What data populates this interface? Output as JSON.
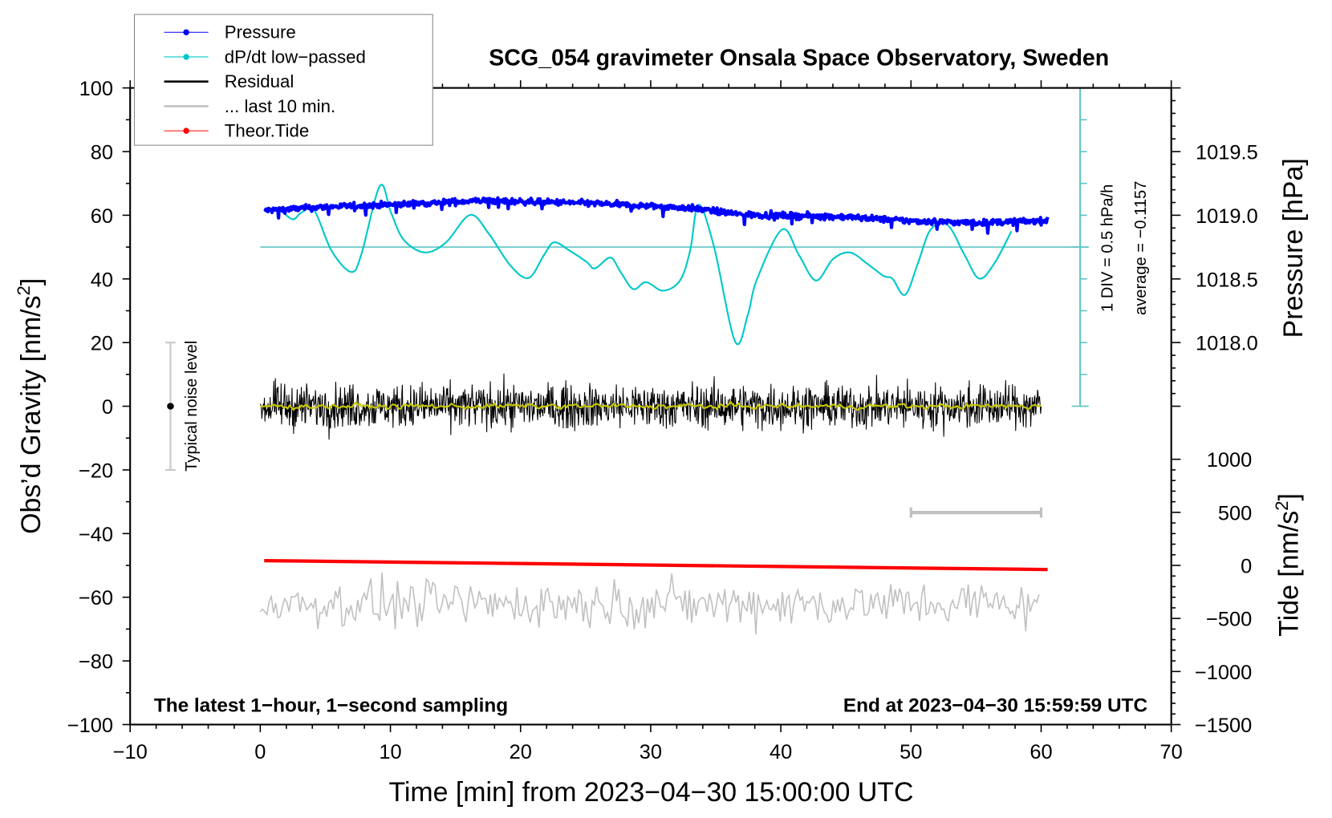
{
  "chart_data": {
    "type": "line",
    "title": "SCG_054 gravimeter Onsala Space Observatory, Sweden",
    "xlabel": "Time [min] from 2023−04−30 15:00:00 UTC",
    "ylabel": "Obs’d Gravity [nm/s²]",
    "ylabel_right_pressure": "Pressure [hPa]",
    "ylabel_right_tide_text": "Tide [nm/s",
    "ylabel_right_tide_sup": "2",
    "ylabel_right_tide_end": "]",
    "ylabel_text": "Obs’d Gravity [nm/s",
    "ylabel_sup": "2",
    "ylabel_end": "]",
    "xlim": [
      -10,
      70
    ],
    "ylim": [
      -100,
      100
    ],
    "x_ticks": [
      "−10",
      "0",
      "10",
      "20",
      "30",
      "40",
      "50",
      "60",
      "70"
    ],
    "x_tick_values": [
      -10,
      0,
      10,
      20,
      30,
      40,
      50,
      60,
      70
    ],
    "y_ticks": [
      "−100",
      "−80",
      "−60",
      "−40",
      "−20",
      "0",
      "20",
      "40",
      "60",
      "80",
      "100"
    ],
    "y_tick_values": [
      -100,
      -80,
      -60,
      -40,
      -20,
      0,
      20,
      40,
      60,
      80,
      100
    ],
    "pressure_ticks": [
      "1018.0",
      "1018.5",
      "1019.0",
      "1019.5"
    ],
    "pressure_tick_values": [
      1018.0,
      1018.5,
      1019.0,
      1019.5
    ],
    "pressure_axis": {
      "ref_hpa": 1019.0,
      "ref_gravity": 60,
      "hpa_per_gravity_unit": 0.025
    },
    "tide_ticks": [
      "−1500",
      "−1000",
      "−500",
      "0",
      "500",
      "1000"
    ],
    "tide_tick_values": [
      -1500,
      -1000,
      -500,
      0,
      500,
      1000
    ],
    "tide_axis": {
      "zero_gravity": -50,
      "tide_per_gravity_unit": 30
    },
    "dpdt_scale": {
      "label": "1 DIV = 0.5 hPa/h",
      "average_label": "average = −0.1157",
      "axis_time": 63,
      "div_gravity": 10,
      "top": 100,
      "bottom": 0,
      "average_level": 50
    },
    "legend": [
      {
        "label": "Pressure",
        "color": "#0000ff",
        "marker": true
      },
      {
        "label": "dP/dt low−passed",
        "color": "#00c8c8",
        "marker": true
      },
      {
        "label": "Residual",
        "color": "#000000",
        "marker": false
      },
      {
        "label": "... last 10 min.",
        "color": "#c0c0c0",
        "marker": false
      },
      {
        "label": "Theor.Tide",
        "color": "#ff0000",
        "marker": true
      }
    ],
    "legend_position": "top-left",
    "series": [
      {
        "name": "Pressure",
        "color": "#0000ff",
        "unit": "gravity-scaled",
        "trend_x": [
          0.3,
          5,
          10,
          17,
          25,
          33,
          37,
          45,
          50,
          55,
          60.5
        ],
        "trend_y": [
          61.5,
          62.6,
          63.3,
          64.6,
          63.8,
          62.3,
          60.2,
          59.5,
          58.2,
          57.6,
          58.3
        ],
        "noise": 0.8
      },
      {
        "name": "dP/dt low-passed",
        "color": "#00c8c8",
        "x": [
          1.74,
          2.53,
          3.18,
          4.16,
          5.47,
          6.97,
          7.75,
          9.19,
          10.04,
          11.02,
          12.65,
          14.28,
          16.12,
          17.56,
          19.2,
          20.62,
          21.8,
          22.58,
          23.76,
          25.06,
          25.72,
          26.9,
          27.68,
          28.66,
          29.64,
          30.95,
          32.25,
          33.03,
          33.68,
          34.86,
          36.49,
          37.47,
          38.13,
          40.09,
          41.39,
          42.7,
          44.0,
          45.3,
          46.6,
          47.9,
          48.57,
          49.55,
          50.53,
          51.51,
          52.82,
          54.12,
          55.24,
          56.41,
          57.72
        ],
        "y": [
          60.9,
          58.7,
          60.9,
          61.4,
          48.9,
          42.2,
          47.5,
          69.2,
          60.9,
          52.3,
          48.3,
          51.5,
          60.1,
          54.2,
          44.3,
          40.3,
          47.5,
          51.5,
          48.9,
          45.4,
          43.3,
          46.7,
          42.2,
          36.8,
          39.0,
          36.3,
          39.5,
          48.9,
          63.3,
          50.2,
          20.3,
          28.8,
          39.5,
          55.5,
          47.5,
          39.5,
          46.2,
          48.3,
          44.9,
          40.9,
          40.1,
          35.0,
          44.9,
          55.5,
          56.9,
          47.5,
          40.1,
          44.9,
          55.0
        ]
      },
      {
        "name": "Residual",
        "color": "#000000",
        "x_range": [
          0,
          60
        ],
        "mean": 0,
        "amplitude": 10
      },
      {
        "name": "Residual smoothed",
        "color": "#c8c800",
        "x_range": [
          0,
          60
        ],
        "mean": 0,
        "amplitude": 1.2
      },
      {
        "name": "... last 10 min.",
        "color": "#c0c0c0",
        "x_range": [
          0,
          60
        ],
        "mean": -62,
        "amplitude": 8,
        "bar_x": [
          50,
          60
        ],
        "bar_y": -33.4
      },
      {
        "name": "Theor.Tide",
        "color": "#ff0000",
        "x": [
          0.3,
          60.5
        ],
        "y": [
          -48.5,
          -51.3
        ]
      }
    ],
    "noise_bar": {
      "label": "Typical noise level",
      "x": -6.9,
      "y_range": [
        -20,
        20
      ],
      "center": 0
    },
    "annotations": {
      "left": "The latest 1−hour, 1−second sampling",
      "right": "End at 2023−04−30 15:59:59 UTC"
    },
    "grid": false
  }
}
